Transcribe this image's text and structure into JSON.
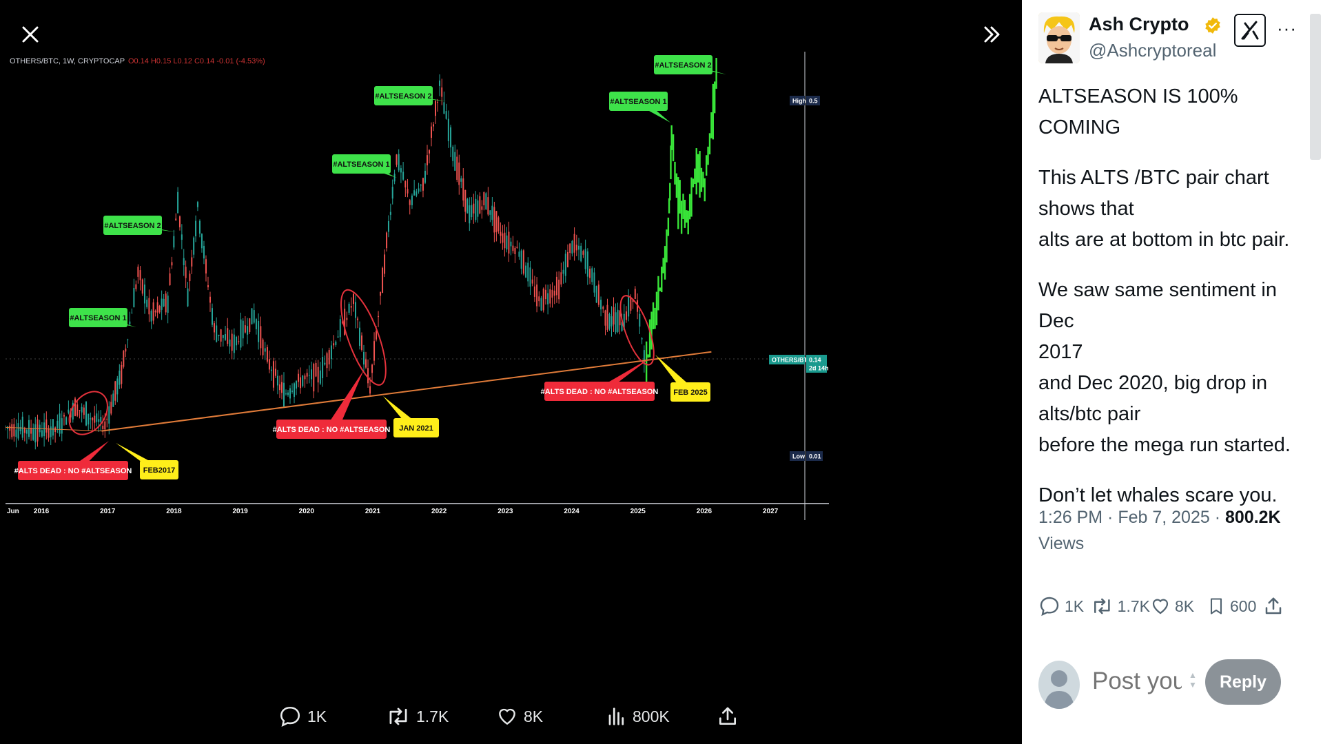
{
  "viewer": {
    "close_icon": "close-icon",
    "expand_icon": "double-chevron-right-icon",
    "chart_header": {
      "symbol": "OTHERS/BTC, 1W, CRYPTOCAP",
      "ohlc": "O0.14 H0.15 L0.12 C0.14 -0.01 (-4.53%)"
    },
    "actions": {
      "replies": "1K",
      "reposts": "1.7K",
      "likes": "8K",
      "views": "800K"
    }
  },
  "chart_data": {
    "type": "line",
    "xlabel": "",
    "ylabel": "",
    "x_ticks": [
      "Jun",
      "2016",
      "2017",
      "2018",
      "2019",
      "2020",
      "2021",
      "2022",
      "2023",
      "2024",
      "2025",
      "2026",
      "2027"
    ],
    "price_tags": {
      "high_label": "High",
      "high_value": "0.5",
      "current_label": "OTHERS/BTC",
      "current_value": "0.14",
      "current_countdown": "2d 14h",
      "low_label": "Low",
      "low_value": "0.01"
    },
    "series": [
      {
        "values": [
          [
            2015.45,
            0.045
          ],
          [
            2015.9,
            0.04
          ],
          [
            2016.2,
            0.042
          ],
          [
            2016.5,
            0.075
          ],
          [
            2016.7,
            0.06
          ],
          [
            2016.95,
            0.048
          ],
          [
            2017.2,
            0.12
          ],
          [
            2017.45,
            0.26
          ],
          [
            2017.65,
            0.2
          ],
          [
            2017.9,
            0.22
          ],
          [
            2018.05,
            0.36
          ],
          [
            2018.2,
            0.23
          ],
          [
            2018.35,
            0.35
          ],
          [
            2018.6,
            0.18
          ],
          [
            2018.9,
            0.16
          ],
          [
            2019.2,
            0.2
          ],
          [
            2019.4,
            0.14
          ],
          [
            2019.65,
            0.09
          ],
          [
            2019.9,
            0.11
          ],
          [
            2020.2,
            0.12
          ],
          [
            2020.5,
            0.18
          ],
          [
            2020.7,
            0.22
          ],
          [
            2020.95,
            0.1
          ],
          [
            2021.2,
            0.3
          ],
          [
            2021.35,
            0.42
          ],
          [
            2021.55,
            0.36
          ],
          [
            2021.75,
            0.38
          ],
          [
            2022.0,
            0.52
          ],
          [
            2022.2,
            0.43
          ],
          [
            2022.45,
            0.34
          ],
          [
            2022.7,
            0.36
          ],
          [
            2022.95,
            0.31
          ],
          [
            2023.2,
            0.29
          ],
          [
            2023.5,
            0.22
          ],
          [
            2023.8,
            0.24
          ],
          [
            2024.0,
            0.3
          ],
          [
            2024.2,
            0.28
          ],
          [
            2024.5,
            0.2
          ],
          [
            2024.75,
            0.19
          ],
          [
            2024.95,
            0.23
          ],
          [
            2025.12,
            0.13
          ]
        ]
      },
      {
        "values": [
          [
            2025.12,
            0.13
          ],
          [
            2025.3,
            0.22
          ],
          [
            2025.45,
            0.32
          ],
          [
            2025.5,
            0.44
          ],
          [
            2025.6,
            0.36
          ],
          [
            2025.75,
            0.34
          ],
          [
            2025.85,
            0.4
          ],
          [
            2026.0,
            0.38
          ],
          [
            2026.1,
            0.46
          ],
          [
            2026.2,
            0.55
          ]
        ]
      }
    ],
    "trendline": {
      "from": [
        2016.9,
        0.04
      ],
      "to": [
        2026.1,
        0.15
      ]
    },
    "annotations": [
      {
        "text": "#ALTSEASON 1",
        "kind": "green"
      },
      {
        "text": "#ALTSEASON 2",
        "kind": "green"
      },
      {
        "text": "#ALTSEASON 1",
        "kind": "green"
      },
      {
        "text": "#ALTSEASON 2",
        "kind": "green"
      },
      {
        "text": "#ALTSEASON 1",
        "kind": "green"
      },
      {
        "text": "#ALTSEASON 2",
        "kind": "green"
      },
      {
        "text": "#ALTS DEAD : NO #ALTSEASON",
        "kind": "red"
      },
      {
        "text": "#ALTS DEAD : NO #ALTSEASON",
        "kind": "red"
      },
      {
        "text": "#ALTS DEAD : NO #ALTSEASON",
        "kind": "red"
      },
      {
        "text": "FEB2017",
        "kind": "yellow"
      },
      {
        "text": "JAN 2021",
        "kind": "yellow"
      },
      {
        "text": "FEB 2025",
        "kind": "yellow"
      }
    ],
    "colors": {
      "bull": "#26a69a",
      "bear": "#ef5350",
      "projection": "#39e639",
      "trendline": "#e07b39",
      "green_label": "#3ee24a",
      "red_label": "#ef2b3a",
      "yellow_label": "#ffee1a"
    }
  },
  "panel": {
    "author_name": "Ash Crypto",
    "author_handle": "@Ashcryptoreal",
    "more": "···",
    "tweet_paragraphs": [
      "ALTSEASON IS 100% COMING",
      "This ALTS /BTC pair chart\nshows that\nalts are at bottom in btc pair.",
      "We saw same sentiment in Dec\n2017\nand Dec 2020, big drop in\nalts/btc pair\nbefore the mega run started.",
      "Don’t let whales scare you."
    ],
    "timestamp": "1:26 PM · Feb 7, 2025 · ",
    "views_count": "800.2K",
    "views_label": "Views",
    "stats": {
      "replies": "1K",
      "reposts": "1.7K",
      "likes": "8K",
      "bookmarks": "600"
    },
    "reply_placeholder": "Post your",
    "reply_button": "Reply"
  }
}
